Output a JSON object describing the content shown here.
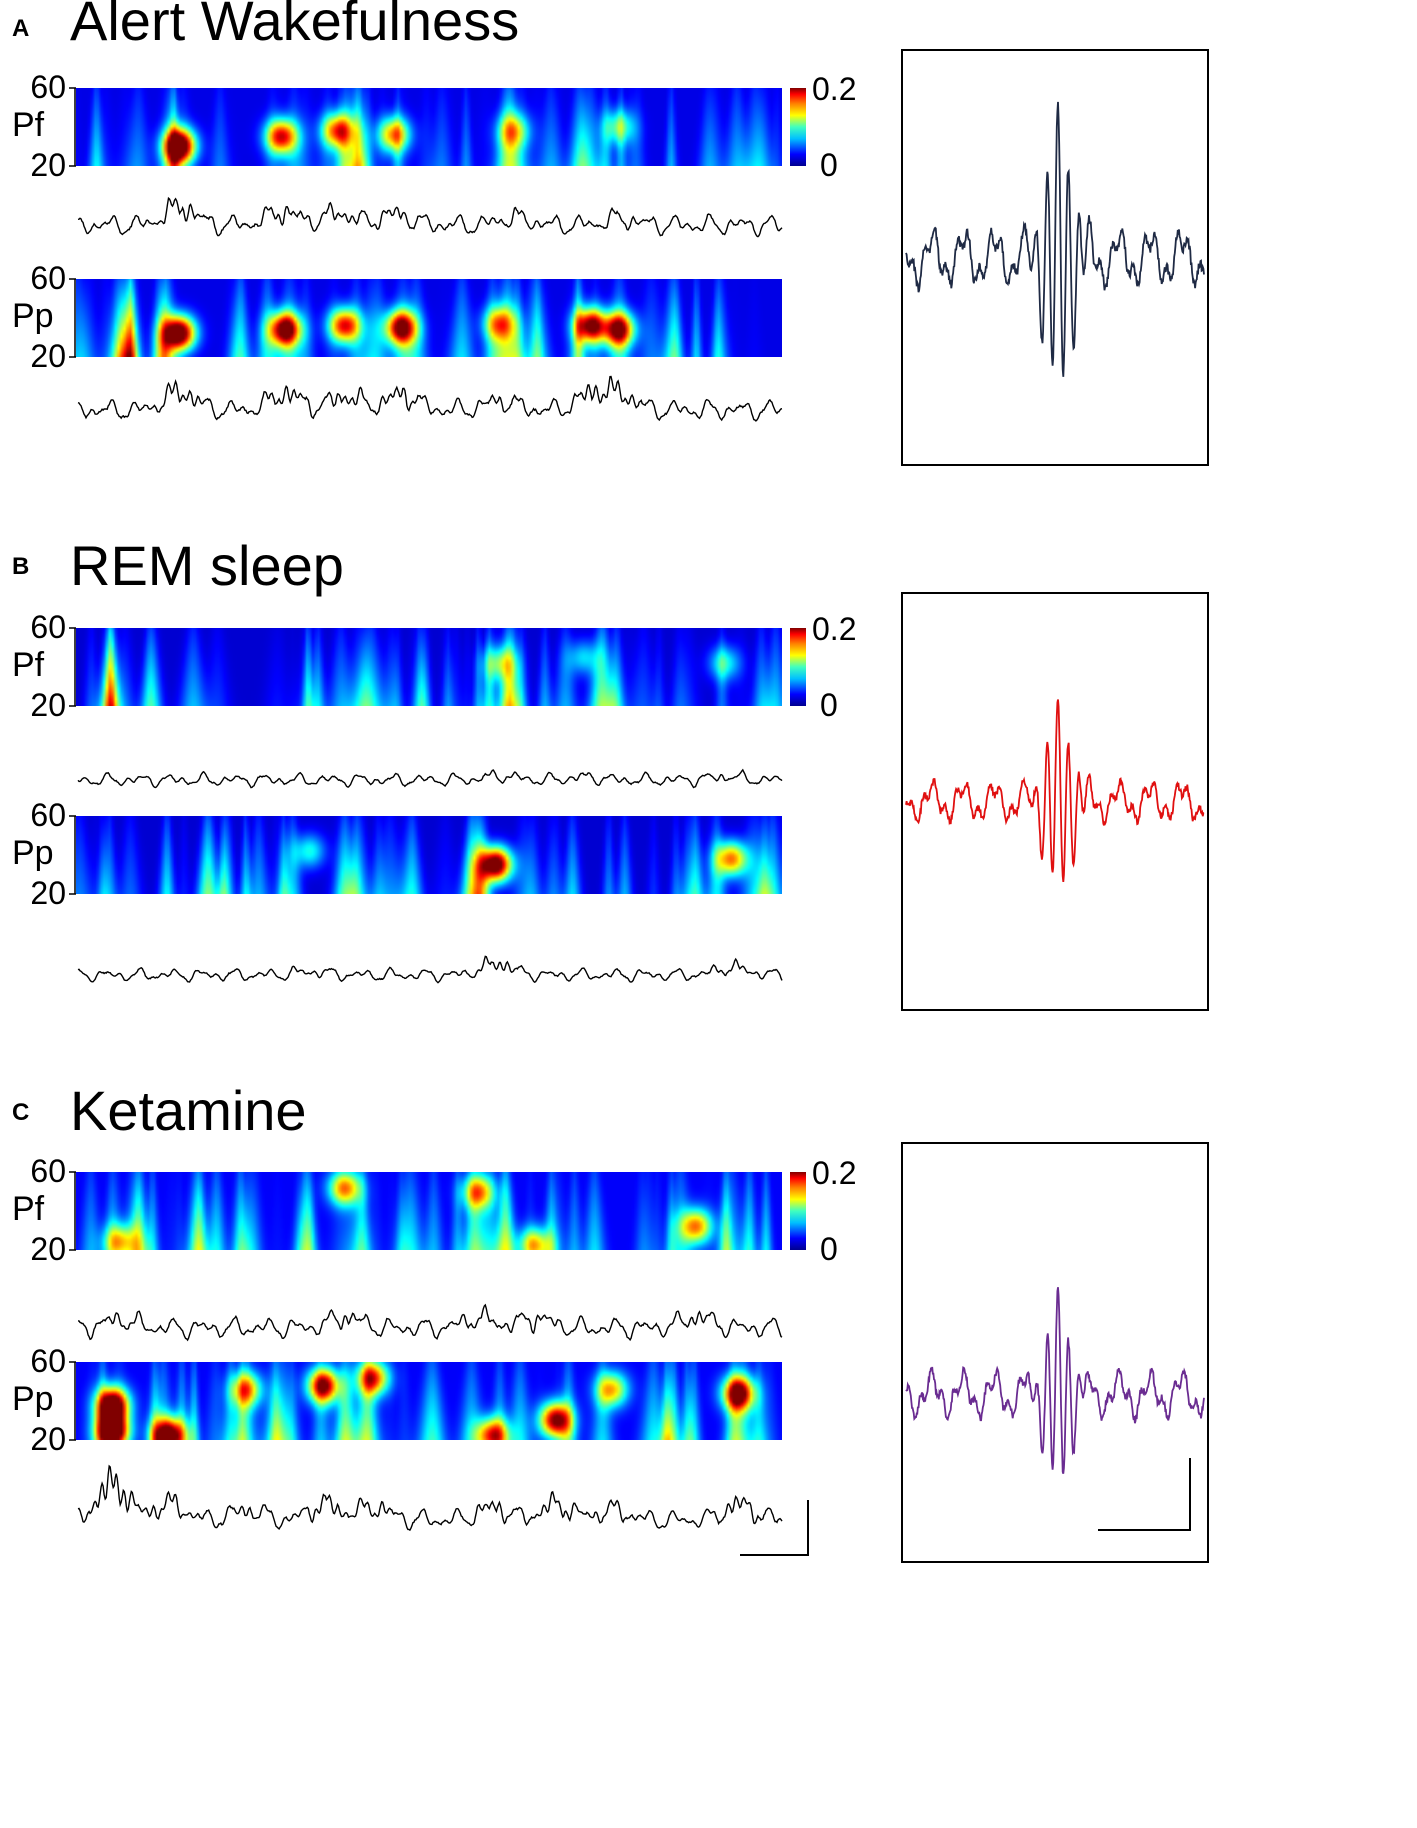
{
  "colors": {
    "wake_trace": "#1f2a44",
    "rem_trace": "#e01010",
    "ketamine_trace": "#6a2c91",
    "eeg_trace": "#000000",
    "frame": "#000000",
    "colormap": [
      "#00008f",
      "#0000ff",
      "#0080ff",
      "#00ffff",
      "#80ff80",
      "#ffff00",
      "#ff8000",
      "#ff0000",
      "#800000"
    ]
  },
  "chart_data": [
    {
      "type": "heatmap",
      "panel": "A",
      "title": "Alert Wakefulness",
      "channels": [
        {
          "name": "Pf",
          "yticks": [
            "60",
            "20"
          ],
          "ylim": [
            20,
            60
          ],
          "hotspots": [
            {
              "t": 0.145,
              "f": 30,
              "amp": 1.0
            },
            {
              "t": 0.29,
              "f": 35,
              "amp": 0.75
            },
            {
              "t": 0.37,
              "f": 38,
              "amp": 0.65
            },
            {
              "t": 0.45,
              "f": 36,
              "amp": 0.6
            },
            {
              "t": 0.62,
              "f": 38,
              "amp": 0.4
            },
            {
              "t": 0.77,
              "f": 40,
              "amp": 0.35
            }
          ]
        },
        {
          "name": "Pp",
          "yticks": [
            "60",
            "20"
          ],
          "ylim": [
            20,
            60
          ],
          "hotspots": [
            {
              "t": 0.145,
              "f": 32,
              "amp": 1.0
            },
            {
              "t": 0.295,
              "f": 34,
              "amp": 0.9
            },
            {
              "t": 0.38,
              "f": 36,
              "amp": 0.75
            },
            {
              "t": 0.46,
              "f": 35,
              "amp": 0.85
            },
            {
              "t": 0.6,
              "f": 37,
              "amp": 0.5
            },
            {
              "t": 0.73,
              "f": 36,
              "amp": 0.85
            },
            {
              "t": 0.77,
              "f": 34,
              "amp": 0.8
            }
          ]
        }
      ],
      "colorbar": {
        "max_label": "0.2",
        "min_label": "0",
        "range": [
          0,
          0.2
        ]
      },
      "average_trace": {
        "amplitude": 1.0,
        "color_key": "wake_trace"
      }
    },
    {
      "type": "heatmap",
      "panel": "B",
      "title": "REM sleep",
      "channels": [
        {
          "name": "Pf",
          "yticks": [
            "60",
            "20"
          ],
          "ylim": [
            20,
            60
          ],
          "hotspots": [
            {
              "t": 0.6,
              "f": 42,
              "amp": 0.35
            },
            {
              "t": 0.72,
              "f": 45,
              "amp": 0.25
            },
            {
              "t": 0.92,
              "f": 42,
              "amp": 0.3
            }
          ]
        },
        {
          "name": "Pp",
          "yticks": [
            "60",
            "20"
          ],
          "ylim": [
            20,
            60
          ],
          "hotspots": [
            {
              "t": 0.595,
              "f": 35,
              "amp": 1.0
            },
            {
              "t": 0.93,
              "f": 38,
              "amp": 0.65
            },
            {
              "t": 0.33,
              "f": 42,
              "amp": 0.3
            }
          ]
        }
      ],
      "colorbar": {
        "max_label": "0.2",
        "min_label": "0",
        "range": [
          0,
          0.2
        ]
      },
      "average_trace": {
        "amplitude": 0.7,
        "color_key": "rem_trace"
      }
    },
    {
      "type": "heatmap",
      "panel": "C",
      "title": "Ketamine",
      "channels": [
        {
          "name": "Pf",
          "yticks": [
            "60",
            "20"
          ],
          "ylim": [
            20,
            60
          ],
          "hotspots": [
            {
              "t": 0.38,
              "f": 52,
              "amp": 0.6
            },
            {
              "t": 0.57,
              "f": 50,
              "amp": 0.55
            },
            {
              "t": 0.88,
              "f": 32,
              "amp": 0.6
            },
            {
              "t": 0.65,
              "f": 22,
              "amp": 0.55
            },
            {
              "t": 0.06,
              "f": 24,
              "amp": 0.45
            }
          ]
        },
        {
          "name": "Pp",
          "yticks": [
            "60",
            "20"
          ],
          "ylim": [
            20,
            60
          ],
          "hotspots": [
            {
              "t": 0.05,
              "f": 38,
              "amp": 1.0
            },
            {
              "t": 0.05,
              "f": 24,
              "amp": 1.0
            },
            {
              "t": 0.13,
              "f": 22,
              "amp": 0.9
            },
            {
              "t": 0.35,
              "f": 48,
              "amp": 0.85
            },
            {
              "t": 0.42,
              "f": 52,
              "amp": 0.7
            },
            {
              "t": 0.68,
              "f": 30,
              "amp": 0.85
            },
            {
              "t": 0.59,
              "f": 22,
              "amp": 0.7
            },
            {
              "t": 0.94,
              "f": 44,
              "amp": 0.85
            },
            {
              "t": 0.76,
              "f": 46,
              "amp": 0.55
            },
            {
              "t": 0.24,
              "f": 46,
              "amp": 0.55
            }
          ]
        }
      ],
      "colorbar": {
        "max_label": "0.2",
        "min_label": "0",
        "range": [
          0,
          0.2
        ]
      },
      "average_trace": {
        "amplitude": 0.8,
        "color_key": "ketamine_trace"
      }
    }
  ]
}
